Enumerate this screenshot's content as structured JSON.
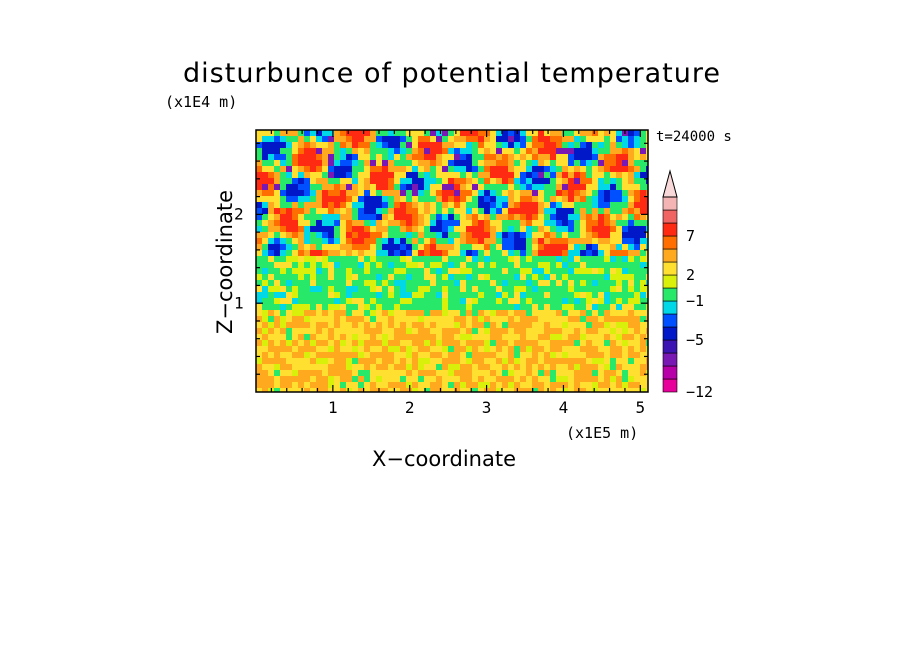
{
  "chart_data": {
    "type": "heatmap",
    "title": "disturbunce of potential temperature",
    "xlabel": "X−coordinate",
    "ylabel": "Z−coordinate",
    "x_unit": "(x1E5 m)",
    "y_unit": "(x1E4 m)",
    "annotation": "t=24000 s",
    "xlim": [
      0,
      5.1
    ],
    "ylim": [
      0,
      2.95
    ],
    "x_ticks": [
      {
        "value": 1,
        "label": "1"
      },
      {
        "value": 2,
        "label": "2"
      },
      {
        "value": 3,
        "label": "3"
      },
      {
        "value": 4,
        "label": "4"
      },
      {
        "value": 5,
        "label": "5"
      }
    ],
    "y_ticks": [
      {
        "value": 1,
        "label": "1"
      },
      {
        "value": 2,
        "label": "2"
      }
    ],
    "colorbar": {
      "levels": [
        {
          "color": "#e8009a"
        },
        {
          "color": "#b800a8"
        },
        {
          "color": "#7a18b4"
        },
        {
          "color": "#3c14b4"
        },
        {
          "color": "#0018c8"
        },
        {
          "color": "#0050ff"
        },
        {
          "color": "#00d8e8"
        },
        {
          "color": "#28e86a"
        },
        {
          "color": "#d8f00a"
        },
        {
          "color": "#ffe030"
        },
        {
          "color": "#ffaa1e"
        },
        {
          "color": "#ff6e00"
        },
        {
          "color": "#ff2a12"
        },
        {
          "color": "#f06464"
        },
        {
          "color": "#f4b4b4"
        }
      ],
      "tick_labels": [
        {
          "label": "7"
        },
        {
          "label": "2"
        },
        {
          "label": "−1"
        },
        {
          "label": "−5"
        },
        {
          "label": "−12"
        }
      ],
      "overflow_color": "#f8d8d8"
    },
    "field_description": [
      {
        "band": "0 to 1 (x1E4 m)",
        "dominant": "yellow and orange (about 2 to 4)"
      },
      {
        "band": "1 to 1.6 (x1E4 m)",
        "dominant": "green (about -1 to 0)"
      },
      {
        "band": "1.6 to 2.95 (x1E4 m)",
        "dominant": "mixed red/orange and blue/purple (about -12 to 9)"
      }
    ]
  }
}
